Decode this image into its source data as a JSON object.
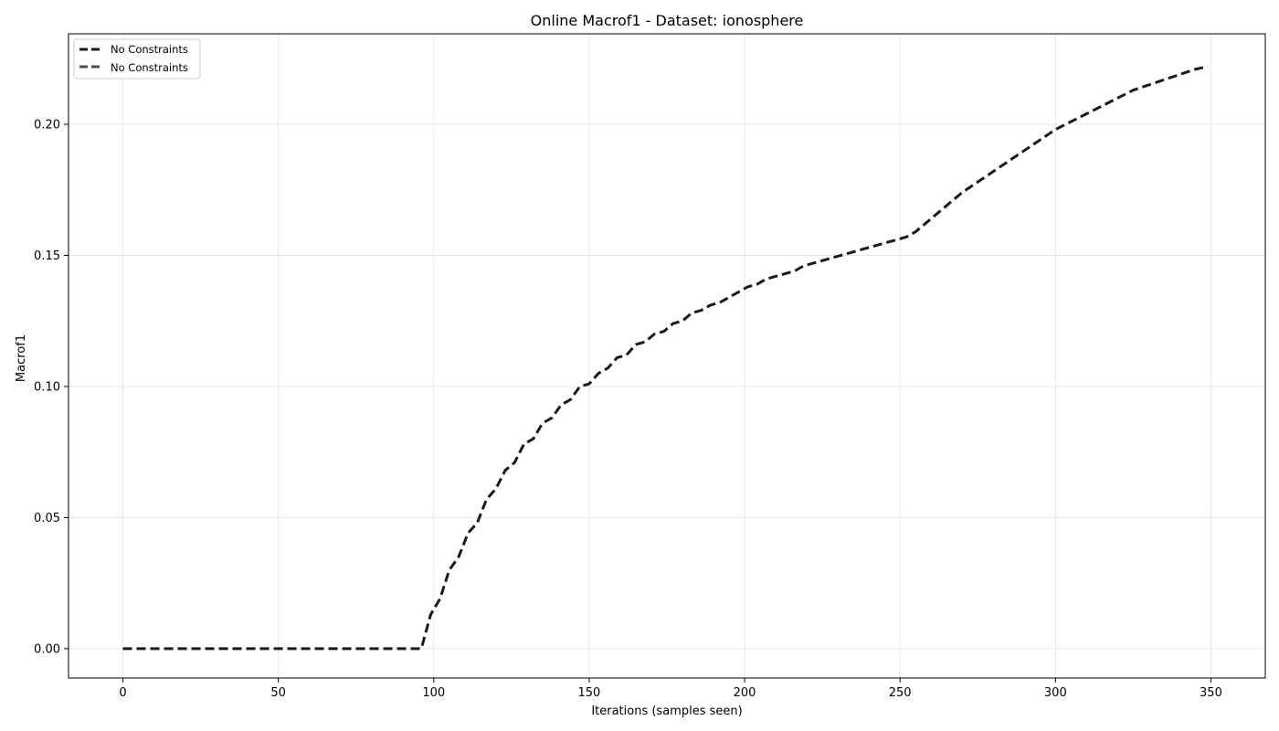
{
  "chart_data": {
    "type": "line",
    "title": "Online Macrof1 - Dataset: ionosphere",
    "xlabel": "Iterations (samples seen)",
    "ylabel": "Macrof1",
    "xlim": [
      -17.5,
      367.5
    ],
    "ylim": [
      -0.0112,
      0.2345
    ],
    "xticks": [
      0,
      50,
      100,
      150,
      200,
      250,
      300,
      350
    ],
    "yticks": [
      0.0,
      0.05,
      0.1,
      0.15,
      0.2
    ],
    "ytick_labels": [
      "0.00",
      "0.05",
      "0.10",
      "0.15",
      "0.20"
    ],
    "grid": true,
    "legend_position": "top-left",
    "series": [
      {
        "name": "No Constraints",
        "color": "#1a1a1a",
        "style": "dashed",
        "x": [
          0,
          10,
          20,
          30,
          40,
          50,
          60,
          70,
          80,
          90,
          96,
          99,
          102,
          105,
          108,
          111,
          114,
          117,
          120,
          123,
          126,
          129,
          132,
          135,
          138,
          141,
          144,
          147,
          150,
          153,
          156,
          159,
          162,
          165,
          168,
          171,
          174,
          177,
          180,
          183,
          186,
          189,
          192,
          195,
          198,
          201,
          204,
          207,
          210,
          213,
          216,
          219,
          222,
          225,
          228,
          231,
          234,
          237,
          240,
          243,
          246,
          249,
          252,
          255,
          260,
          265,
          270,
          275,
          280,
          285,
          290,
          295,
          300,
          305,
          310,
          315,
          320,
          325,
          330,
          335,
          340,
          345,
          349
        ],
        "values": [
          0,
          0,
          0,
          0,
          0,
          0,
          0,
          0,
          0,
          0,
          0,
          0.013,
          0.019,
          0.03,
          0.035,
          0.044,
          0.048,
          0.057,
          0.061,
          0.068,
          0.071,
          0.078,
          0.08,
          0.086,
          0.088,
          0.093,
          0.095,
          0.1,
          0.101,
          0.105,
          0.107,
          0.111,
          0.112,
          0.116,
          0.117,
          0.12,
          0.121,
          0.124,
          0.125,
          0.128,
          0.129,
          0.131,
          0.132,
          0.134,
          0.136,
          0.138,
          0.139,
          0.141,
          0.142,
          0.143,
          0.144,
          0.146,
          0.147,
          0.148,
          0.149,
          0.15,
          0.151,
          0.152,
          0.153,
          0.154,
          0.155,
          0.156,
          0.157,
          0.159,
          0.164,
          0.169,
          0.174,
          0.178,
          0.182,
          0.186,
          0.19,
          0.194,
          0.198,
          0.201,
          0.204,
          0.207,
          0.21,
          0.213,
          0.215,
          0.217,
          0.219,
          0.221,
          0.222
        ]
      },
      {
        "name": "No Constraints",
        "color": "#4d4d4d",
        "style": "dashed",
        "values": []
      }
    ]
  }
}
